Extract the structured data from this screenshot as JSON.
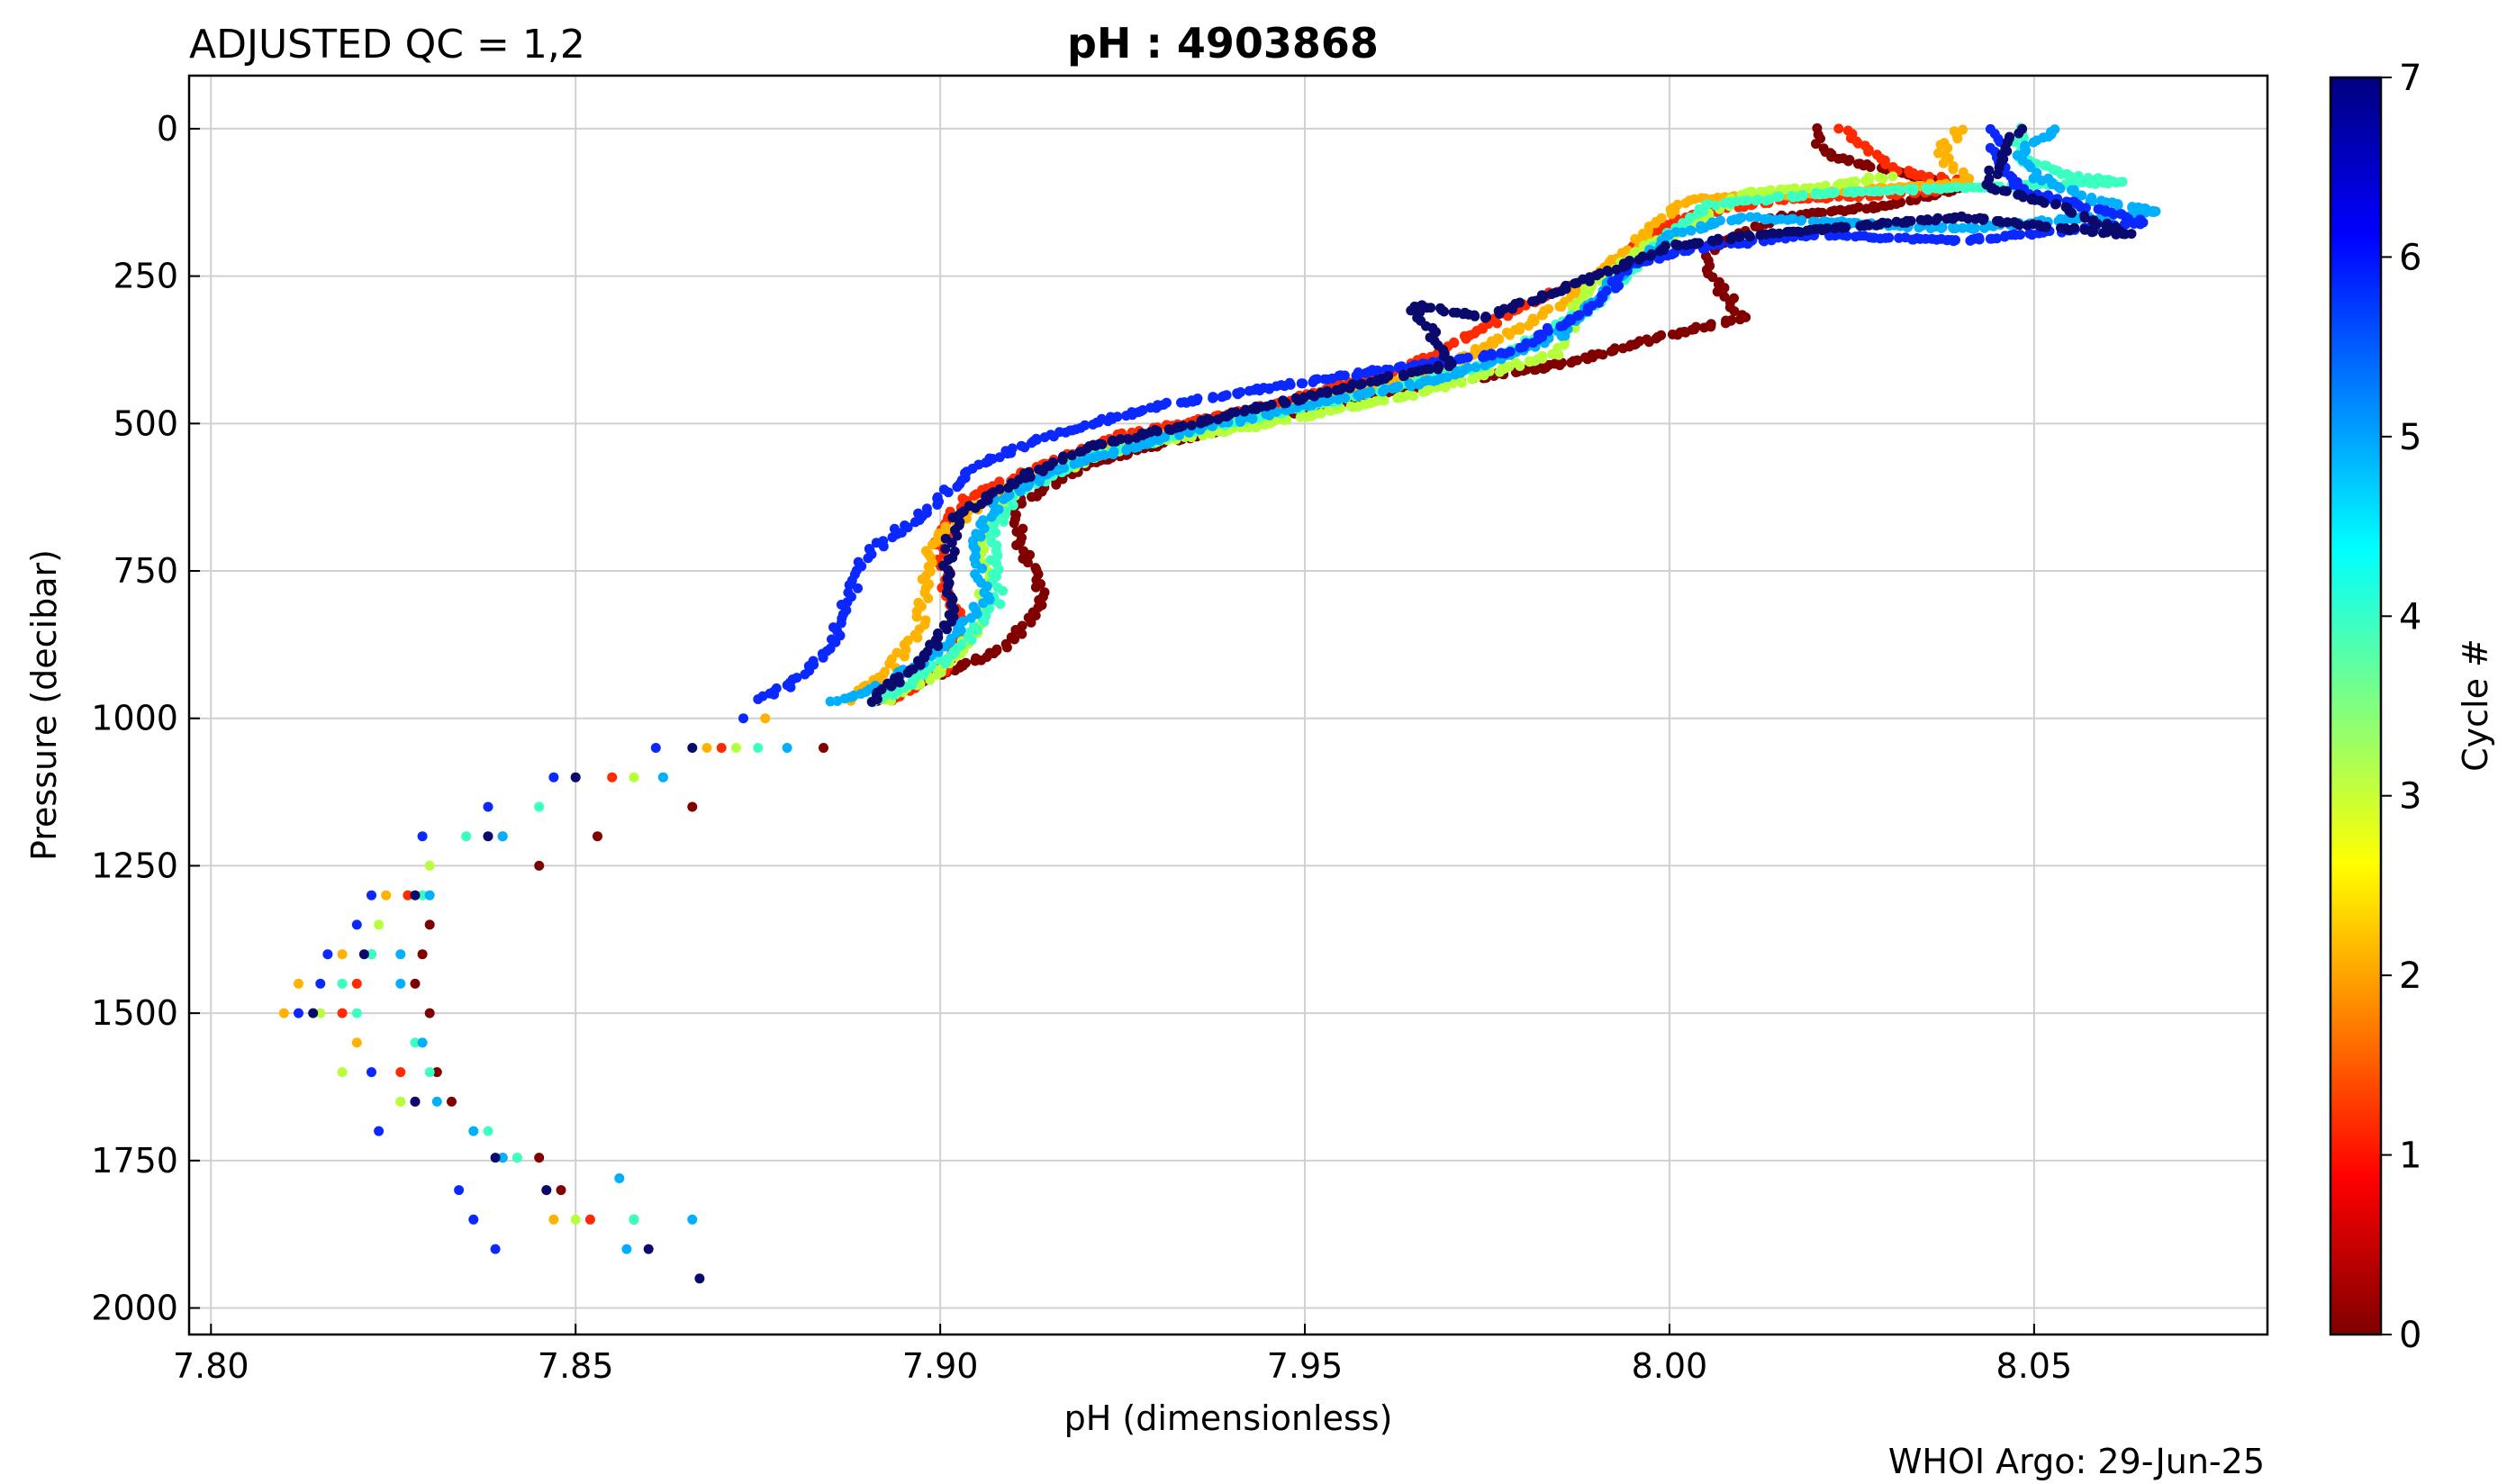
{
  "header": {
    "left_title": "ADJUSTED QC = 1,2",
    "center_title": "pH : 4903868",
    "footer": "WHOI Argo: 29-Jun-25"
  },
  "chart_data": {
    "type": "scatter",
    "xlabel": "pH  (dimensionless)",
    "ylabel": "Pressure  (decibar)",
    "xlim": [
      7.797,
      8.082
    ],
    "ylim": [
      2045,
      -90
    ],
    "y_inverted": true,
    "xticks": [
      7.8,
      7.85,
      7.9,
      7.95,
      8.0,
      8.05
    ],
    "xtick_labels": [
      "7.80",
      "7.85",
      "7.90",
      "7.95",
      "8.00",
      "8.05"
    ],
    "yticks": [
      0,
      250,
      500,
      750,
      1000,
      1250,
      1500,
      1750,
      2000
    ],
    "ytick_labels": [
      "0",
      "250",
      "500",
      "750",
      "1000",
      "1250",
      "1500",
      "1750",
      "2000"
    ],
    "grid": true,
    "colorbar": {
      "label": "Cycle #",
      "min": 0,
      "max": 7,
      "ticks": [
        0,
        1,
        2,
        3,
        4,
        5,
        6,
        7
      ],
      "tick_labels": [
        "0",
        "1",
        "2",
        "3",
        "4",
        "5",
        "6",
        "7"
      ],
      "colormap": "jet_reversed"
    },
    "series": [
      {
        "cycle": 0,
        "color": "#800000",
        "profile": [
          [
            8.02,
            0
          ],
          [
            8.021,
            40
          ],
          [
            8.026,
            60
          ],
          [
            8.033,
            80
          ],
          [
            8.04,
            100
          ],
          [
            8.03,
            130
          ],
          [
            8.015,
            150
          ],
          [
            8.006,
            200
          ],
          [
            8.005,
            240
          ],
          [
            8.01,
            320
          ],
          [
            8.0,
            350
          ],
          [
            7.985,
            400
          ],
          [
            7.96,
            450
          ],
          [
            7.935,
            520
          ],
          [
            7.92,
            570
          ],
          [
            7.91,
            640
          ],
          [
            7.911,
            700
          ],
          [
            7.914,
            800
          ],
          [
            7.909,
            880
          ],
          [
            7.895,
            950
          ],
          [
            7.89,
            975
          ]
        ],
        "deep": [
          [
            7.884,
            1050
          ],
          [
            7.866,
            1150
          ],
          [
            7.853,
            1200
          ],
          [
            7.845,
            1250
          ],
          [
            7.83,
            1350
          ],
          [
            7.829,
            1400
          ],
          [
            7.828,
            1450
          ],
          [
            7.83,
            1500
          ],
          [
            7.831,
            1600
          ],
          [
            7.833,
            1650
          ],
          [
            7.845,
            1745
          ],
          [
            7.848,
            1800
          ],
          [
            7.858,
            1850
          ]
        ]
      },
      {
        "cycle": 1,
        "color": "#ff2a00",
        "profile": [
          [
            8.024,
            0
          ],
          [
            8.028,
            40
          ],
          [
            8.031,
            70
          ],
          [
            8.04,
            90
          ],
          [
            8.035,
            110
          ],
          [
            8.015,
            120
          ],
          [
            8.002,
            150
          ],
          [
            7.995,
            200
          ],
          [
            7.99,
            250
          ],
          [
            7.98,
            300
          ],
          [
            7.965,
            400
          ],
          [
            7.945,
            470
          ],
          [
            7.925,
            520
          ],
          [
            7.912,
            580
          ],
          [
            7.903,
            630
          ],
          [
            7.9,
            700
          ],
          [
            7.901,
            780
          ],
          [
            7.903,
            850
          ],
          [
            7.9,
            920
          ],
          [
            7.893,
            975
          ]
        ],
        "deep": [
          [
            7.87,
            1050
          ],
          [
            7.855,
            1100
          ],
          [
            7.84,
            1200
          ],
          [
            7.827,
            1300
          ],
          [
            7.822,
            1400
          ],
          [
            7.82,
            1450
          ],
          [
            7.818,
            1500
          ],
          [
            7.826,
            1600
          ],
          [
            7.828,
            1650
          ],
          [
            7.84,
            1745
          ],
          [
            7.846,
            1800
          ],
          [
            7.852,
            1850
          ]
        ]
      },
      {
        "cycle": 2,
        "color": "#ffb300",
        "profile": [
          [
            8.04,
            0
          ],
          [
            8.037,
            40
          ],
          [
            8.039,
            70
          ],
          [
            8.041,
            90
          ],
          [
            8.02,
            110
          ],
          [
            8.003,
            120
          ],
          [
            8.0,
            140
          ],
          [
            7.995,
            200
          ],
          [
            7.985,
            300
          ],
          [
            7.97,
            400
          ],
          [
            7.95,
            470
          ],
          [
            7.93,
            520
          ],
          [
            7.914,
            580
          ],
          [
            7.905,
            640
          ],
          [
            7.899,
            700
          ],
          [
            7.898,
            780
          ],
          [
            7.897,
            850
          ],
          [
            7.893,
            920
          ],
          [
            7.887,
            975
          ]
        ],
        "deep": [
          [
            7.876,
            1000
          ],
          [
            7.868,
            1050
          ],
          [
            7.85,
            1100
          ],
          [
            7.835,
            1200
          ],
          [
            7.824,
            1300
          ],
          [
            7.818,
            1400
          ],
          [
            7.812,
            1450
          ],
          [
            7.81,
            1500
          ],
          [
            7.82,
            1550
          ],
          [
            7.826,
            1650
          ],
          [
            7.842,
            1745
          ],
          [
            7.847,
            1850
          ]
        ]
      },
      {
        "cycle": 3,
        "color": "#b7ff3c",
        "profile": [
          [
            8.03,
            80
          ],
          [
            8.02,
            100
          ],
          [
            8.01,
            110
          ],
          [
            8.005,
            150
          ],
          [
            7.997,
            200
          ],
          [
            7.988,
            280
          ],
          [
            7.985,
            380
          ],
          [
            7.965,
            450
          ],
          [
            7.945,
            500
          ],
          [
            7.925,
            540
          ],
          [
            7.912,
            600
          ],
          [
            7.906,
            680
          ],
          [
            7.906,
            760
          ],
          [
            7.905,
            850
          ],
          [
            7.9,
            920
          ],
          [
            7.892,
            975
          ]
        ],
        "deep": [
          [
            7.872,
            1050
          ],
          [
            7.858,
            1100
          ],
          [
            7.845,
            1150
          ],
          [
            7.838,
            1200
          ],
          [
            7.83,
            1250
          ],
          [
            7.823,
            1350
          ],
          [
            7.818,
            1450
          ],
          [
            7.815,
            1500
          ],
          [
            7.818,
            1600
          ],
          [
            7.826,
            1650
          ],
          [
            7.84,
            1745
          ],
          [
            7.85,
            1850
          ]
        ]
      },
      {
        "cycle": 4,
        "color": "#3cffc2",
        "profile": [
          [
            8.048,
            0
          ],
          [
            8.048,
            50
          ],
          [
            8.055,
            80
          ],
          [
            8.062,
            90
          ],
          [
            8.04,
            100
          ],
          [
            8.02,
            110
          ],
          [
            8.005,
            130
          ],
          [
            7.998,
            200
          ],
          [
            7.99,
            300
          ],
          [
            7.975,
            400
          ],
          [
            7.955,
            460
          ],
          [
            7.935,
            510
          ],
          [
            7.92,
            560
          ],
          [
            7.91,
            620
          ],
          [
            7.907,
            700
          ],
          [
            7.908,
            800
          ],
          [
            7.903,
            880
          ],
          [
            7.895,
            950
          ],
          [
            7.89,
            975
          ]
        ],
        "deep": [
          [
            7.875,
            1050
          ],
          [
            7.862,
            1100
          ],
          [
            7.845,
            1150
          ],
          [
            7.835,
            1200
          ],
          [
            7.829,
            1300
          ],
          [
            7.822,
            1400
          ],
          [
            7.818,
            1450
          ],
          [
            7.82,
            1500
          ],
          [
            7.828,
            1550
          ],
          [
            7.83,
            1600
          ],
          [
            7.838,
            1700
          ],
          [
            7.842,
            1745
          ],
          [
            7.858,
            1850
          ]
        ]
      },
      {
        "cycle": 5,
        "color": "#00b0ff",
        "profile": [
          [
            8.053,
            0
          ],
          [
            8.048,
            40
          ],
          [
            8.05,
            80
          ],
          [
            8.058,
            120
          ],
          [
            8.067,
            140
          ],
          [
            8.04,
            170
          ],
          [
            8.01,
            150
          ],
          [
            8.0,
            180
          ],
          [
            7.992,
            260
          ],
          [
            7.985,
            350
          ],
          [
            7.97,
            420
          ],
          [
            7.95,
            470
          ],
          [
            7.935,
            510
          ],
          [
            7.918,
            570
          ],
          [
            7.908,
            630
          ],
          [
            7.905,
            700
          ],
          [
            7.906,
            800
          ],
          [
            7.9,
            880
          ],
          [
            7.893,
            940
          ],
          [
            7.885,
            975
          ]
        ],
        "deep": [
          [
            7.879,
            1050
          ],
          [
            7.862,
            1100
          ],
          [
            7.84,
            1200
          ],
          [
            7.83,
            1300
          ],
          [
            7.826,
            1400
          ],
          [
            7.826,
            1450
          ],
          [
            7.829,
            1550
          ],
          [
            7.831,
            1650
          ],
          [
            7.836,
            1700
          ],
          [
            7.84,
            1745
          ],
          [
            7.856,
            1780
          ],
          [
            7.866,
            1850
          ],
          [
            7.857,
            1900
          ]
        ]
      },
      {
        "cycle": 6,
        "color": "#0a28ff",
        "profile": [
          [
            8.044,
            0
          ],
          [
            8.045,
            40
          ],
          [
            8.046,
            80
          ],
          [
            8.05,
            110
          ],
          [
            8.06,
            140
          ],
          [
            8.065,
            160
          ],
          [
            8.04,
            190
          ],
          [
            8.02,
            180
          ],
          [
            8.005,
            200
          ],
          [
            7.995,
            230
          ],
          [
            7.99,
            300
          ],
          [
            7.978,
            380
          ],
          [
            7.96,
            410
          ],
          [
            7.945,
            440
          ],
          [
            7.93,
            470
          ],
          [
            7.915,
            520
          ],
          [
            7.905,
            570
          ],
          [
            7.898,
            650
          ],
          [
            7.89,
            720
          ],
          [
            7.888,
            780
          ],
          [
            7.885,
            880
          ],
          [
            7.88,
            940
          ],
          [
            7.875,
            970
          ]
        ],
        "deep": [
          [
            7.873,
            1000
          ],
          [
            7.861,
            1050
          ],
          [
            7.847,
            1100
          ],
          [
            7.838,
            1150
          ],
          [
            7.829,
            1200
          ],
          [
            7.822,
            1300
          ],
          [
            7.82,
            1350
          ],
          [
            7.816,
            1400
          ],
          [
            7.815,
            1450
          ],
          [
            7.812,
            1500
          ],
          [
            7.822,
            1600
          ],
          [
            7.823,
            1700
          ],
          [
            7.834,
            1800
          ],
          [
            7.836,
            1850
          ],
          [
            7.839,
            1900
          ]
        ]
      },
      {
        "cycle": 7,
        "color": "#0a0a6e",
        "profile": [
          [
            8.048,
            0
          ],
          [
            8.045,
            50
          ],
          [
            8.044,
            100
          ],
          [
            8.053,
            130
          ],
          [
            8.063,
            180
          ],
          [
            8.04,
            150
          ],
          [
            8.012,
            180
          ],
          [
            8.0,
            200
          ],
          [
            7.99,
            250
          ],
          [
            7.975,
            320
          ],
          [
            7.965,
            300
          ],
          [
            7.97,
            400
          ],
          [
            7.955,
            440
          ],
          [
            7.935,
            500
          ],
          [
            7.92,
            540
          ],
          [
            7.91,
            600
          ],
          [
            7.902,
            660
          ],
          [
            7.901,
            740
          ],
          [
            7.902,
            830
          ],
          [
            7.897,
            910
          ],
          [
            7.89,
            975
          ]
        ],
        "deep": [
          [
            7.866,
            1050
          ],
          [
            7.85,
            1100
          ],
          [
            7.838,
            1200
          ],
          [
            7.828,
            1300
          ],
          [
            7.821,
            1400
          ],
          [
            7.814,
            1500
          ],
          [
            7.828,
            1650
          ],
          [
            7.839,
            1745
          ],
          [
            7.846,
            1800
          ],
          [
            7.86,
            1900
          ],
          [
            7.867,
            1950
          ]
        ]
      }
    ]
  }
}
